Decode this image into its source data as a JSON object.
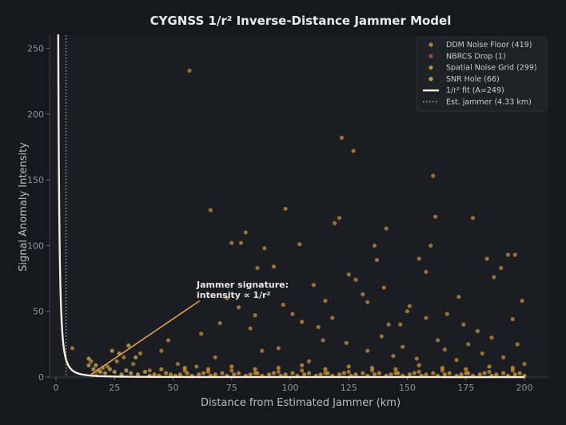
{
  "chart_data": {
    "type": "scatter",
    "title": "CYGNSS 1/r² Inverse-Distance Jammer Model",
    "xlabel": "Distance from Estimated Jammer (km)",
    "ylabel": "Signal Anomaly Intensity",
    "xlim": [
      0,
      200
    ],
    "ylim": [
      0,
      260
    ],
    "xticks": [
      0,
      25,
      50,
      75,
      100,
      125,
      150,
      175,
      200
    ],
    "yticks": [
      0,
      50,
      100,
      150,
      200,
      250
    ],
    "grid": false,
    "legend_position": "top-right",
    "series": [
      {
        "name": "DDM Noise Floor (419)",
        "color": "#c8913f",
        "points": [
          [
            57,
            233
          ],
          [
            66,
            127
          ],
          [
            81,
            110
          ],
          [
            75,
            102
          ],
          [
            79,
            102
          ],
          [
            89,
            98
          ],
          [
            98,
            128
          ],
          [
            104,
            101
          ],
          [
            119,
            117
          ],
          [
            121,
            121
          ],
          [
            122,
            182
          ],
          [
            127,
            172
          ],
          [
            136,
            100
          ],
          [
            137,
            89
          ],
          [
            141,
            113
          ],
          [
            161,
            153
          ],
          [
            162,
            122
          ],
          [
            160,
            100
          ],
          [
            155,
            90
          ],
          [
            158,
            80
          ],
          [
            178,
            121
          ],
          [
            184,
            90
          ],
          [
            190,
            83
          ],
          [
            193,
            93
          ],
          [
            196,
            93
          ],
          [
            199,
            58
          ],
          [
            187,
            76
          ],
          [
            93,
            84
          ],
          [
            86,
            83
          ],
          [
            110,
            70
          ],
          [
            115,
            58
          ],
          [
            125,
            78
          ],
          [
            128,
            74
          ],
          [
            131,
            63
          ],
          [
            133,
            57
          ],
          [
            140,
            68
          ],
          [
            142,
            40
          ],
          [
            147,
            40
          ],
          [
            150,
            50
          ],
          [
            151,
            54
          ],
          [
            158,
            45
          ],
          [
            167,
            48
          ],
          [
            172,
            61
          ],
          [
            174,
            40
          ],
          [
            180,
            35
          ],
          [
            195,
            44
          ],
          [
            97,
            55
          ],
          [
            101,
            48
          ],
          [
            105,
            42
          ],
          [
            112,
            38
          ],
          [
            118,
            45
          ],
          [
            85,
            47
          ],
          [
            83,
            37
          ],
          [
            78,
            53
          ],
          [
            73,
            60
          ],
          [
            70,
            41
          ],
          [
            62,
            33
          ],
          [
            68,
            15
          ],
          [
            48,
            28
          ],
          [
            45,
            20
          ],
          [
            36,
            18
          ],
          [
            29,
            15
          ],
          [
            26,
            12
          ],
          [
            33,
            10
          ],
          [
            22,
            8
          ],
          [
            18,
            5
          ],
          [
            40,
            5
          ],
          [
            52,
            10
          ],
          [
            60,
            8
          ],
          [
            88,
            20
          ],
          [
            95,
            22
          ],
          [
            108,
            12
          ],
          [
            114,
            28
          ],
          [
            124,
            26
          ],
          [
            133,
            20
          ],
          [
            139,
            31
          ],
          [
            144,
            16
          ],
          [
            148,
            23
          ],
          [
            154,
            14
          ],
          [
            163,
            28
          ],
          [
            166,
            21
          ],
          [
            171,
            13
          ],
          [
            176,
            25
          ],
          [
            182,
            18
          ],
          [
            186,
            30
          ],
          [
            191,
            15
          ],
          [
            197,
            25
          ],
          [
            200,
            10
          ],
          [
            55,
            5
          ],
          [
            65,
            4
          ],
          [
            75,
            5
          ],
          [
            85,
            3
          ],
          [
            95,
            4
          ],
          [
            105,
            5
          ],
          [
            115,
            3
          ],
          [
            125,
            4
          ],
          [
            135,
            5
          ],
          [
            145,
            3
          ],
          [
            155,
            4
          ],
          [
            165,
            5
          ],
          [
            175,
            3
          ],
          [
            185,
            4
          ],
          [
            195,
            5
          ],
          [
            7,
            22
          ],
          [
            15,
            12
          ],
          [
            20,
            7
          ]
        ]
      },
      {
        "name": "NBRCS Drop (1)",
        "color": "#b0533c",
        "points": [
          [
            17,
            2
          ]
        ]
      },
      {
        "name": "Spatial Noise Grid (299)",
        "color": "#e0a030",
        "points": [
          [
            42,
            2
          ],
          [
            44,
            1
          ],
          [
            47,
            3
          ],
          [
            49,
            2
          ],
          [
            51,
            1
          ],
          [
            53,
            2
          ],
          [
            56,
            3
          ],
          [
            58,
            1
          ],
          [
            61,
            2
          ],
          [
            63,
            3
          ],
          [
            66,
            1
          ],
          [
            68,
            2
          ],
          [
            71,
            3
          ],
          [
            73,
            1
          ],
          [
            76,
            2
          ],
          [
            78,
            3
          ],
          [
            81,
            1
          ],
          [
            83,
            2
          ],
          [
            86,
            3
          ],
          [
            88,
            1
          ],
          [
            91,
            2
          ],
          [
            93,
            3
          ],
          [
            96,
            1
          ],
          [
            98,
            2
          ],
          [
            101,
            3
          ],
          [
            103,
            1
          ],
          [
            106,
            2
          ],
          [
            108,
            3
          ],
          [
            111,
            1
          ],
          [
            113,
            2
          ],
          [
            116,
            3
          ],
          [
            118,
            1
          ],
          [
            121,
            2
          ],
          [
            123,
            3
          ],
          [
            126,
            1
          ],
          [
            128,
            2
          ],
          [
            131,
            3
          ],
          [
            133,
            1
          ],
          [
            136,
            2
          ],
          [
            138,
            3
          ],
          [
            141,
            1
          ],
          [
            143,
            2
          ],
          [
            146,
            3
          ],
          [
            148,
            1
          ],
          [
            151,
            2
          ],
          [
            153,
            3
          ],
          [
            156,
            1
          ],
          [
            158,
            2
          ],
          [
            161,
            3
          ],
          [
            163,
            1
          ],
          [
            166,
            2
          ],
          [
            168,
            3
          ],
          [
            171,
            1
          ],
          [
            173,
            2
          ],
          [
            176,
            3
          ],
          [
            178,
            1
          ],
          [
            181,
            2
          ],
          [
            183,
            3
          ],
          [
            186,
            1
          ],
          [
            188,
            2
          ],
          [
            191,
            3
          ],
          [
            193,
            1
          ],
          [
            196,
            2
          ],
          [
            198,
            3
          ],
          [
            200,
            1
          ],
          [
            45,
            6
          ],
          [
            55,
            7
          ],
          [
            65,
            6
          ],
          [
            75,
            8
          ],
          [
            85,
            6
          ],
          [
            95,
            7
          ],
          [
            105,
            9
          ],
          [
            115,
            6
          ],
          [
            125,
            8
          ],
          [
            135,
            7
          ],
          [
            145,
            6
          ],
          [
            155,
            9
          ],
          [
            165,
            7
          ],
          [
            175,
            6
          ],
          [
            185,
            8
          ],
          [
            195,
            7
          ]
        ]
      },
      {
        "name": "SNR Hole (66)",
        "color": "#cfb55a",
        "points": [
          [
            14,
            14
          ],
          [
            14,
            9
          ],
          [
            16,
            6
          ],
          [
            17,
            9
          ],
          [
            19,
            4
          ],
          [
            21,
            3
          ],
          [
            23,
            6
          ],
          [
            25,
            4
          ],
          [
            28,
            2
          ],
          [
            30,
            5
          ],
          [
            32,
            3
          ],
          [
            35,
            2
          ],
          [
            38,
            4
          ],
          [
            40,
            1
          ],
          [
            24,
            20
          ],
          [
            27,
            18
          ],
          [
            31,
            24
          ],
          [
            34,
            15
          ]
        ]
      }
    ],
    "fit": {
      "name": "1/r² fit (A=249)",
      "A": 249,
      "color": "#f5efe0"
    },
    "jammer": {
      "name": "Est. jammer (4.33 km)",
      "distance_km": 4.33,
      "color": "#c9ccd2"
    },
    "annotation": {
      "lines": [
        "Jammer signature:",
        "intensity ∝ 1/r²"
      ],
      "target": [
        15,
        2
      ],
      "text_anchor": [
        60,
        58
      ],
      "color": "#d9a050"
    }
  }
}
